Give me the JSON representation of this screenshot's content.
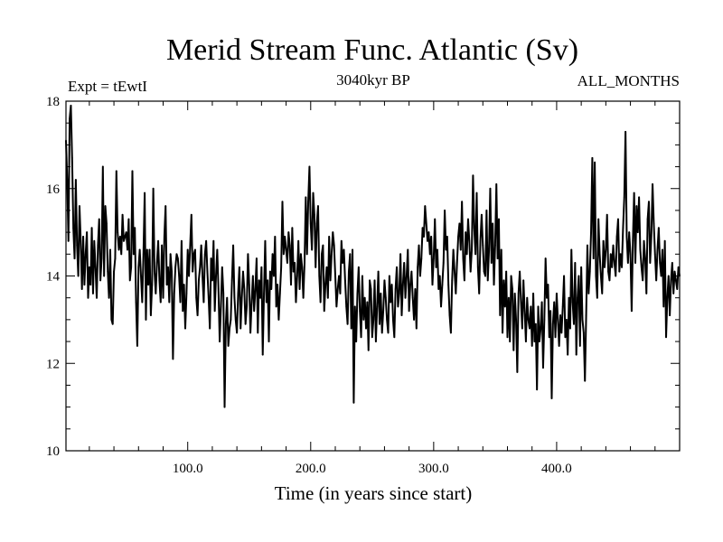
{
  "chart_data": {
    "type": "line",
    "title": "Merid Stream Func. Atlantic (Sv)",
    "subtitle_left": "Expt = tEwtI",
    "subtitle_center": "3040kyr BP",
    "subtitle_right": "ALL_MONTHS",
    "xlabel": "Time (in years since start)",
    "ylabel": "",
    "xlim": [
      1,
      500
    ],
    "ylim": [
      10,
      18
    ],
    "xticks": [
      {
        "value": 100,
        "label": "100.0"
      },
      {
        "value": 200,
        "label": "200.0"
      },
      {
        "value": 300,
        "label": "300.0"
      },
      {
        "value": 400,
        "label": "400.0"
      }
    ],
    "yticks": [
      {
        "value": 10,
        "label": "10"
      },
      {
        "value": 12,
        "label": "12"
      },
      {
        "value": 14,
        "label": "14"
      },
      {
        "value": 16,
        "label": "16"
      },
      {
        "value": 18,
        "label": "18"
      }
    ],
    "grid": false,
    "series": [
      {
        "name": "Atlantic meridional stream function",
        "x_start": 1,
        "x_step": 1,
        "values": [
          17.1,
          16.2,
          14.8,
          17.6,
          17.9,
          16.7,
          15.1,
          14.4,
          16.2,
          14.7,
          14.0,
          15.6,
          14.8,
          13.7,
          14.9,
          13.8,
          14.5,
          15.0,
          13.5,
          14.2,
          13.8,
          15.1,
          13.6,
          14.8,
          14.2,
          13.5,
          14.7,
          15.3,
          13.9,
          14.4,
          16.5,
          14.0,
          15.6,
          15.2,
          14.1,
          13.5,
          14.6,
          13.0,
          12.9,
          14.1,
          14.4,
          16.4,
          15.0,
          14.6,
          14.9,
          14.5,
          15.4,
          14.8,
          14.9,
          15.0,
          14.6,
          15.3,
          13.9,
          14.2,
          16.4,
          14.5,
          15.1,
          13.4,
          12.4,
          14.2,
          14.6,
          14.0,
          13.4,
          14.5,
          15.9,
          13.0,
          14.6,
          13.8,
          14.6,
          13.1,
          13.8,
          16.0,
          14.1,
          13.6,
          14.3,
          14.8,
          13.9,
          13.4,
          14.7,
          13.5,
          14.9,
          15.6,
          13.8,
          14.2,
          13.4,
          14.5,
          14.1,
          12.1,
          13.6,
          14.2,
          14.5,
          14.4,
          14.0,
          13.4,
          14.8,
          13.2,
          13.8,
          12.8,
          13.6,
          14.6,
          14.0,
          14.7,
          15.4,
          14.1,
          14.5,
          14.6,
          13.5,
          13.1,
          13.9,
          14.2,
          14.7,
          14.0,
          13.4,
          14.5,
          14.8,
          14.1,
          13.5,
          12.8,
          14.4,
          13.9,
          14.8,
          13.2,
          14.0,
          14.6,
          13.7,
          12.5,
          13.3,
          14.2,
          13.6,
          11.0,
          12.9,
          13.5,
          12.4,
          12.8,
          13.0,
          13.9,
          14.7,
          13.5,
          13.0,
          12.7,
          13.6,
          14.2,
          12.8,
          13.5,
          14.1,
          13.7,
          12.9,
          13.3,
          14.5,
          13.8,
          12.7,
          13.4,
          14.0,
          13.2,
          13.7,
          14.4,
          12.7,
          13.9,
          13.5,
          14.2,
          12.2,
          13.6,
          14.8,
          13.4,
          13.9,
          12.5,
          14.1,
          13.7,
          14.5,
          14.0,
          14.9,
          13.3,
          13.8,
          13.0,
          13.6,
          14.2,
          15.7,
          14.5,
          14.9,
          14.6,
          14.3,
          15.0,
          14.7,
          13.8,
          15.1,
          14.1,
          14.3,
          13.4,
          14.0,
          14.8,
          13.7,
          14.5,
          14.2,
          13.5,
          14.3,
          15.8,
          14.5,
          15.7,
          16.5,
          15.2,
          14.6,
          15.9,
          15.4,
          14.2,
          15.2,
          15.6,
          14.0,
          13.4,
          14.5,
          14.7,
          13.2,
          13.8,
          14.2,
          13.5,
          14.9,
          13.9,
          14.5,
          15.0,
          14.7,
          14.0,
          13.3,
          13.7,
          14.0,
          13.6,
          14.8,
          14.3,
          14.6,
          13.9,
          13.3,
          12.9,
          14.1,
          14.5,
          12.8,
          14.6,
          11.1,
          13.3,
          12.5,
          13.6,
          14.2,
          13.2,
          12.6,
          14.0,
          13.0,
          13.5,
          12.8,
          13.4,
          12.3,
          13.9,
          13.7,
          12.6,
          13.0,
          13.9,
          12.5,
          13.3,
          14.1,
          12.9,
          13.6,
          12.7,
          13.2,
          13.9,
          13.5,
          13.0,
          12.7,
          14.0,
          13.4,
          13.8,
          13.0,
          12.6,
          13.7,
          14.2,
          13.3,
          13.6,
          14.5,
          13.1,
          13.8,
          14.3,
          13.5,
          14.0,
          14.6,
          13.2,
          13.8,
          14.1,
          13.5,
          13.0,
          13.7,
          12.8,
          14.2,
          14.7,
          14.0,
          14.4,
          15.1,
          14.9,
          15.6,
          15.2,
          14.8,
          15.0,
          14.5,
          14.9,
          13.8,
          14.4,
          15.3,
          14.2,
          14.6,
          13.7,
          14.0,
          13.3,
          13.8,
          14.3,
          15.5,
          14.6,
          14.9,
          13.8,
          13.1,
          12.7,
          13.9,
          14.6,
          14.1,
          13.6,
          14.3,
          14.9,
          15.2,
          14.6,
          15.7,
          14.4,
          13.9,
          15.0,
          14.5,
          15.3,
          14.8,
          14.1,
          14.6,
          16.3,
          15.1,
          14.5,
          15.9,
          14.2,
          13.6,
          14.8,
          15.4,
          14.7,
          14.1,
          14.0,
          15.5,
          13.9,
          14.6,
          16.0,
          14.3,
          15.2,
          13.8,
          14.7,
          16.1,
          14.4,
          15.3,
          13.1,
          14.6,
          12.7,
          13.9,
          13.3,
          14.1,
          12.6,
          13.5,
          12.5,
          14.0,
          13.7,
          12.3,
          13.6,
          13.0,
          11.8,
          13.6,
          14.1,
          13.4,
          12.8,
          13.9,
          13.2,
          12.5,
          13.5,
          13.0,
          12.8,
          13.3,
          12.4,
          13.6,
          12.5,
          12.9,
          11.4,
          13.3,
          12.5,
          12.8,
          13.4,
          11.9,
          13.0,
          14.4,
          13.5,
          13.8,
          12.6,
          13.2,
          11.2,
          12.9,
          13.4,
          12.6,
          13.6,
          13.0,
          12.4,
          13.1,
          12.7,
          13.3,
          14.0,
          12.6,
          13.0,
          12.2,
          13.5,
          12.8,
          14.6,
          13.4,
          12.9,
          14.3,
          12.2,
          13.5,
          14.0,
          12.4,
          14.2,
          13.0,
          12.7,
          11.6,
          13.1,
          14.7,
          13.6,
          14.1,
          15.0,
          16.7,
          14.4,
          16.6,
          14.0,
          13.5,
          15.3,
          14.5,
          14.0,
          13.6,
          14.8,
          14.2,
          14.6,
          15.4,
          14.1,
          13.9,
          14.5,
          14.2,
          14.7,
          14.3,
          14.0,
          14.9,
          15.3,
          14.1,
          14.5,
          14.2,
          15.1,
          15.8,
          17.3,
          14.9,
          14.3,
          15.0,
          14.5,
          13.2,
          14.8,
          15.9,
          14.3,
          15.6,
          15.0,
          15.8,
          14.6,
          14.2,
          13.9,
          14.8,
          14.4,
          13.6,
          15.3,
          15.7,
          14.3,
          14.9,
          16.1,
          15.2,
          14.5,
          13.9,
          14.6,
          15.1,
          14.3,
          14.0,
          14.6,
          13.3,
          14.8,
          12.6,
          13.5,
          14.0,
          13.1,
          13.9,
          14.3,
          13.6,
          14.1,
          13.9,
          13.7,
          14.2,
          14.0
        ]
      }
    ]
  }
}
